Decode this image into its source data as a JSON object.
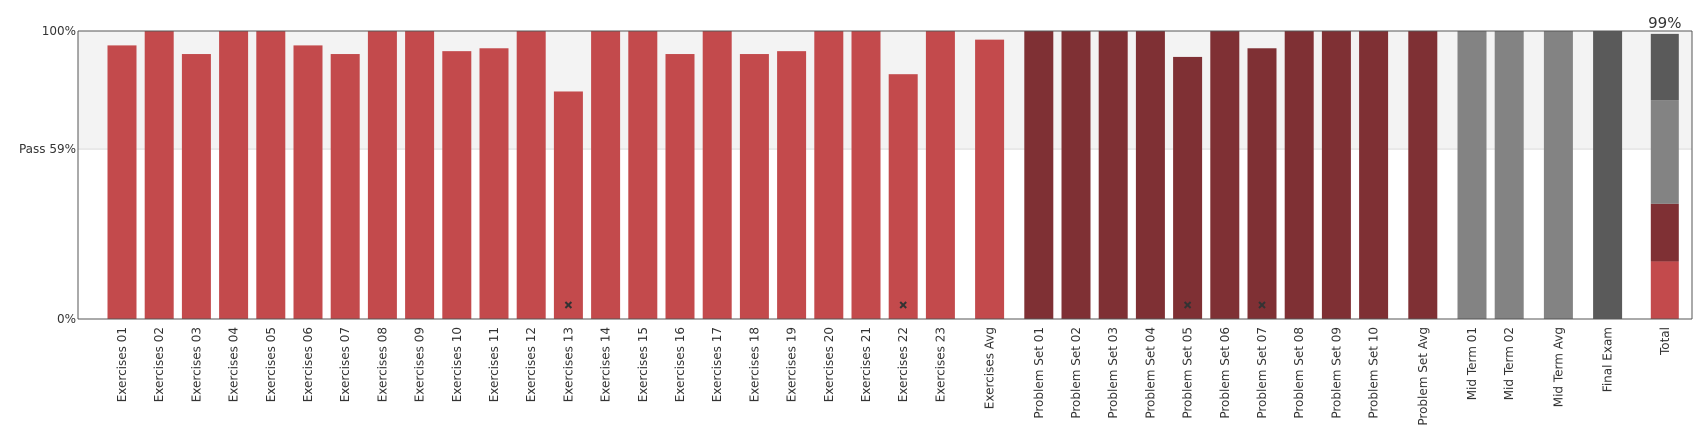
{
  "chart_data": {
    "type": "bar",
    "ylim": [
      0,
      100
    ],
    "y_ticks": [
      {
        "value": 100,
        "label": "100%"
      },
      {
        "value": 59,
        "label": "Pass 59%"
      },
      {
        "value": 0,
        "label": "0%"
      }
    ],
    "pass_threshold": 59,
    "colors": {
      "exercise": "#c34a4c",
      "problem_set": "#7f3034",
      "midterm": "#838383",
      "final": "#5a5a5a",
      "pass_band": "#f3f3f3",
      "marker": "#333333"
    },
    "categories": [
      {
        "label": "Exercises 01",
        "value": 95,
        "group": "exercise"
      },
      {
        "label": "Exercises 02",
        "value": 100,
        "group": "exercise"
      },
      {
        "label": "Exercises 03",
        "value": 92,
        "group": "exercise"
      },
      {
        "label": "Exercises 04",
        "value": 100,
        "group": "exercise"
      },
      {
        "label": "Exercises 05",
        "value": 100,
        "group": "exercise"
      },
      {
        "label": "Exercises 06",
        "value": 95,
        "group": "exercise"
      },
      {
        "label": "Exercises 07",
        "value": 92,
        "group": "exercise"
      },
      {
        "label": "Exercises 08",
        "value": 100,
        "group": "exercise"
      },
      {
        "label": "Exercises 09",
        "value": 100,
        "group": "exercise"
      },
      {
        "label": "Exercises 10",
        "value": 93,
        "group": "exercise"
      },
      {
        "label": "Exercises 11",
        "value": 94,
        "group": "exercise"
      },
      {
        "label": "Exercises 12",
        "value": 100,
        "group": "exercise"
      },
      {
        "label": "Exercises 13",
        "value": 79,
        "group": "exercise",
        "marker": true
      },
      {
        "label": "Exercises 14",
        "value": 100,
        "group": "exercise"
      },
      {
        "label": "Exercises 15",
        "value": 100,
        "group": "exercise"
      },
      {
        "label": "Exercises 16",
        "value": 92,
        "group": "exercise"
      },
      {
        "label": "Exercises 17",
        "value": 100,
        "group": "exercise"
      },
      {
        "label": "Exercises 18",
        "value": 92,
        "group": "exercise"
      },
      {
        "label": "Exercises 19",
        "value": 93,
        "group": "exercise"
      },
      {
        "label": "Exercises 20",
        "value": 100,
        "group": "exercise"
      },
      {
        "label": "Exercises 21",
        "value": 100,
        "group": "exercise"
      },
      {
        "label": "Exercises 22",
        "value": 85,
        "group": "exercise",
        "marker": true
      },
      {
        "label": "Exercises 23",
        "value": 100,
        "group": "exercise"
      },
      {
        "label": "Exercises Avg",
        "value": 97,
        "group": "exercise"
      },
      {
        "label": "Problem Set 01",
        "value": 100,
        "group": "problem_set"
      },
      {
        "label": "Problem Set 02",
        "value": 100,
        "group": "problem_set"
      },
      {
        "label": "Problem Set 03",
        "value": 100,
        "group": "problem_set"
      },
      {
        "label": "Problem Set 04",
        "value": 100,
        "group": "problem_set"
      },
      {
        "label": "Problem Set 05",
        "value": 91,
        "group": "problem_set",
        "marker": true
      },
      {
        "label": "Problem Set 06",
        "value": 100,
        "group": "problem_set"
      },
      {
        "label": "Problem Set 07",
        "value": 94,
        "group": "problem_set",
        "marker": true
      },
      {
        "label": "Problem Set 08",
        "value": 100,
        "group": "problem_set"
      },
      {
        "label": "Problem Set 09",
        "value": 100,
        "group": "problem_set"
      },
      {
        "label": "Problem Set 10",
        "value": 100,
        "group": "problem_set"
      },
      {
        "label": "Problem Set Avg",
        "value": 100,
        "group": "problem_set"
      },
      {
        "label": "Mid Term 01",
        "value": 100,
        "group": "midterm"
      },
      {
        "label": "Mid Term 02",
        "value": 100,
        "group": "midterm"
      },
      {
        "label": "Mid Term Avg",
        "value": 100,
        "group": "midterm"
      },
      {
        "label": "Final Exam",
        "value": 100,
        "group": "final"
      }
    ],
    "total": {
      "label": "Total",
      "value_label": "99%",
      "segments": [
        {
          "group": "exercise",
          "value": 20
        },
        {
          "group": "problem_set",
          "value": 20
        },
        {
          "group": "midterm",
          "value": 36
        },
        {
          "group": "final",
          "value": 23
        }
      ]
    }
  }
}
